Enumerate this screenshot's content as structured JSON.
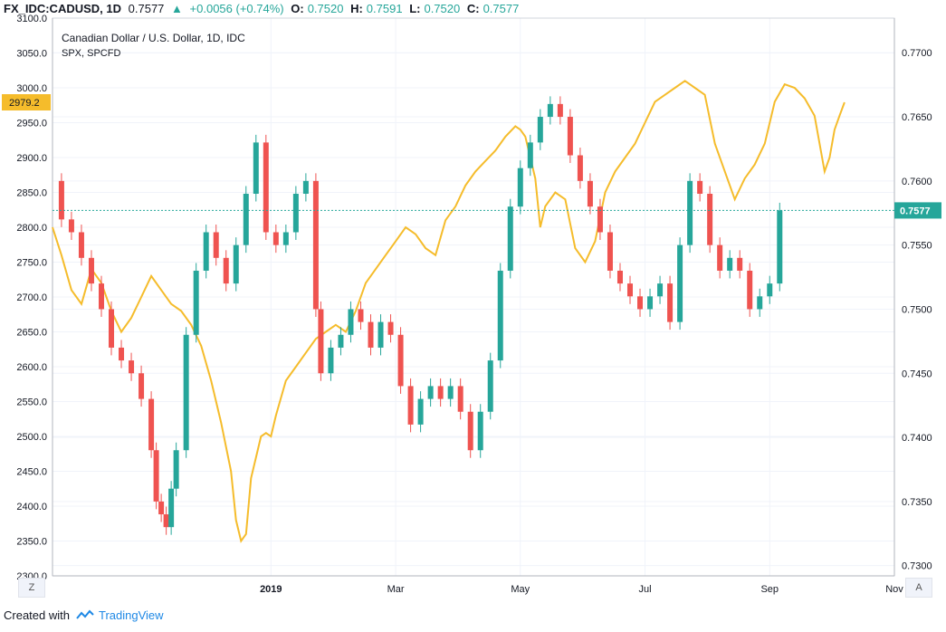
{
  "header": {
    "symbol": "FX_IDC:CADUSD, 1D",
    "last": "0.7577",
    "change_arrow": "▲",
    "change": "+0.0056 (+0.74%)",
    "o_label": "O:",
    "o": "0.7520",
    "h_label": "H:",
    "h": "0.7591",
    "l_label": "L:",
    "l": "0.7520",
    "c_label": "C:",
    "c": "0.7577"
  },
  "legend": {
    "main": "Canadian Dollar / U.S. Dollar, 1D, IDC",
    "overlay": "SPX, SPCFD"
  },
  "footer": {
    "created_with": "Created with",
    "brand": "TradingView"
  },
  "buttons": {
    "zoom": "Z",
    "auto": "A"
  },
  "colors": {
    "up": "#26a69a",
    "down": "#ef5350",
    "spx": "#f5bc2b",
    "price_line": "#26a69a"
  },
  "chart_data": {
    "type": "line",
    "title": "Canadian Dollar / U.S. Dollar, 1D, IDC",
    "x_ticks": [
      "2019",
      "Mar",
      "May",
      "Jul",
      "Sep",
      "Nov"
    ],
    "x_tick_positions": [
      0.25,
      0.5,
      0.75,
      1.0,
      1.25,
      1.5
    ],
    "x_range": [
      -0.188,
      1.5
    ],
    "left_axis": {
      "ticks": [
        "3100.0",
        "3050.0",
        "3000.0",
        "2950.0",
        "2900.0",
        "2850.0",
        "2800.0",
        "2750.0",
        "2700.0",
        "2650.0",
        "2600.0",
        "2550.0",
        "2500.0",
        "2450.0",
        "2400.0",
        "2350.0",
        "2300.0"
      ],
      "range": [
        2300,
        3100
      ]
    },
    "right_axis": {
      "ticks": [
        "0.7700",
        "0.7650",
        "0.7600",
        "0.7550",
        "0.7500",
        "0.7450",
        "0.7400",
        "0.7350",
        "0.7300"
      ],
      "range": [
        0.7292,
        0.7727
      ]
    },
    "spx_label": "2979.2",
    "last_price_label": "0.7577",
    "last_price": 0.7577,
    "series": [
      {
        "name": "SPX, SPCFD",
        "axis": "left",
        "points": [
          [
            -0.188,
            2800
          ],
          [
            -0.17,
            2760
          ],
          [
            -0.15,
            2710
          ],
          [
            -0.13,
            2690
          ],
          [
            -0.11,
            2740
          ],
          [
            -0.09,
            2720
          ],
          [
            -0.07,
            2680
          ],
          [
            -0.05,
            2650
          ],
          [
            -0.03,
            2670
          ],
          [
            -0.01,
            2700
          ],
          [
            0.01,
            2730
          ],
          [
            0.03,
            2710
          ],
          [
            0.05,
            2690
          ],
          [
            0.07,
            2680
          ],
          [
            0.09,
            2660
          ],
          [
            0.11,
            2630
          ],
          [
            0.13,
            2580
          ],
          [
            0.15,
            2520
          ],
          [
            0.17,
            2450
          ],
          [
            0.18,
            2380
          ],
          [
            0.19,
            2350
          ],
          [
            0.2,
            2360
          ],
          [
            0.21,
            2440
          ],
          [
            0.22,
            2470
          ],
          [
            0.23,
            2500
          ],
          [
            0.24,
            2505
          ],
          [
            0.25,
            2500
          ],
          [
            0.26,
            2530
          ],
          [
            0.28,
            2580
          ],
          [
            0.3,
            2600
          ],
          [
            0.32,
            2620
          ],
          [
            0.34,
            2640
          ],
          [
            0.36,
            2650
          ],
          [
            0.38,
            2660
          ],
          [
            0.4,
            2650
          ],
          [
            0.42,
            2680
          ],
          [
            0.44,
            2720
          ],
          [
            0.46,
            2740
          ],
          [
            0.48,
            2760
          ],
          [
            0.5,
            2780
          ],
          [
            0.52,
            2800
          ],
          [
            0.54,
            2790
          ],
          [
            0.56,
            2770
          ],
          [
            0.58,
            2760
          ],
          [
            0.6,
            2810
          ],
          [
            0.62,
            2830
          ],
          [
            0.64,
            2860
          ],
          [
            0.66,
            2880
          ],
          [
            0.68,
            2895
          ],
          [
            0.7,
            2910
          ],
          [
            0.72,
            2930
          ],
          [
            0.74,
            2945
          ],
          [
            0.75,
            2940
          ],
          [
            0.76,
            2930
          ],
          [
            0.78,
            2870
          ],
          [
            0.79,
            2800
          ],
          [
            0.8,
            2830
          ],
          [
            0.82,
            2850
          ],
          [
            0.84,
            2840
          ],
          [
            0.86,
            2770
          ],
          [
            0.88,
            2750
          ],
          [
            0.9,
            2780
          ],
          [
            0.92,
            2850
          ],
          [
            0.94,
            2880
          ],
          [
            0.96,
            2900
          ],
          [
            0.98,
            2920
          ],
          [
            1.0,
            2950
          ],
          [
            1.02,
            2980
          ],
          [
            1.04,
            2990
          ],
          [
            1.06,
            3000
          ],
          [
            1.08,
            3010
          ],
          [
            1.1,
            3000
          ],
          [
            1.12,
            2990
          ],
          [
            1.14,
            2920
          ],
          [
            1.16,
            2880
          ],
          [
            1.18,
            2840
          ],
          [
            1.2,
            2870
          ],
          [
            1.22,
            2890
          ],
          [
            1.24,
            2920
          ],
          [
            1.26,
            2980
          ],
          [
            1.28,
            3005
          ],
          [
            1.3,
            3000
          ],
          [
            1.32,
            2985
          ],
          [
            1.34,
            2960
          ],
          [
            1.36,
            2880
          ],
          [
            1.37,
            2900
          ],
          [
            1.38,
            2940
          ],
          [
            1.39,
            2960
          ],
          [
            1.4,
            2979.2
          ]
        ]
      },
      {
        "name": "CADUSD",
        "axis": "right",
        "points": [
          [
            -0.188,
            0.76
          ],
          [
            -0.17,
            0.757
          ],
          [
            -0.15,
            0.756
          ],
          [
            -0.13,
            0.754
          ],
          [
            -0.11,
            0.752
          ],
          [
            -0.09,
            0.75
          ],
          [
            -0.07,
            0.747
          ],
          [
            -0.05,
            0.746
          ],
          [
            -0.03,
            0.745
          ],
          [
            -0.01,
            0.743
          ],
          [
            0.01,
            0.739
          ],
          [
            0.02,
            0.735
          ],
          [
            0.03,
            0.734
          ],
          [
            0.04,
            0.733
          ],
          [
            0.05,
            0.736
          ],
          [
            0.06,
            0.739
          ],
          [
            0.08,
            0.748
          ],
          [
            0.1,
            0.753
          ],
          [
            0.12,
            0.756
          ],
          [
            0.14,
            0.754
          ],
          [
            0.16,
            0.752
          ],
          [
            0.18,
            0.755
          ],
          [
            0.2,
            0.759
          ],
          [
            0.22,
            0.763
          ],
          [
            0.24,
            0.756
          ],
          [
            0.26,
            0.755
          ],
          [
            0.28,
            0.756
          ],
          [
            0.3,
            0.759
          ],
          [
            0.32,
            0.76
          ],
          [
            0.34,
            0.75
          ],
          [
            0.35,
            0.745
          ],
          [
            0.37,
            0.747
          ],
          [
            0.39,
            0.748
          ],
          [
            0.41,
            0.75
          ],
          [
            0.43,
            0.749
          ],
          [
            0.45,
            0.747
          ],
          [
            0.47,
            0.749
          ],
          [
            0.49,
            0.748
          ],
          [
            0.51,
            0.744
          ],
          [
            0.53,
            0.741
          ],
          [
            0.55,
            0.743
          ],
          [
            0.57,
            0.744
          ],
          [
            0.59,
            0.743
          ],
          [
            0.61,
            0.744
          ],
          [
            0.63,
            0.742
          ],
          [
            0.65,
            0.739
          ],
          [
            0.67,
            0.742
          ],
          [
            0.69,
            0.746
          ],
          [
            0.71,
            0.753
          ],
          [
            0.73,
            0.758
          ],
          [
            0.75,
            0.761
          ],
          [
            0.77,
            0.763
          ],
          [
            0.79,
            0.765
          ],
          [
            0.81,
            0.766
          ],
          [
            0.83,
            0.765
          ],
          [
            0.85,
            0.762
          ],
          [
            0.87,
            0.76
          ],
          [
            0.89,
            0.758
          ],
          [
            0.91,
            0.756
          ],
          [
            0.93,
            0.753
          ],
          [
            0.95,
            0.752
          ],
          [
            0.97,
            0.751
          ],
          [
            0.99,
            0.75
          ],
          [
            1.01,
            0.751
          ],
          [
            1.03,
            0.752
          ],
          [
            1.05,
            0.749
          ],
          [
            1.07,
            0.755
          ],
          [
            1.09,
            0.76
          ],
          [
            1.11,
            0.759
          ],
          [
            1.13,
            0.755
          ],
          [
            1.15,
            0.753
          ],
          [
            1.17,
            0.754
          ],
          [
            1.19,
            0.753
          ],
          [
            1.21,
            0.75
          ],
          [
            1.23,
            0.751
          ],
          [
            1.25,
            0.752
          ],
          [
            1.27,
            0.7577
          ]
        ]
      }
    ]
  }
}
